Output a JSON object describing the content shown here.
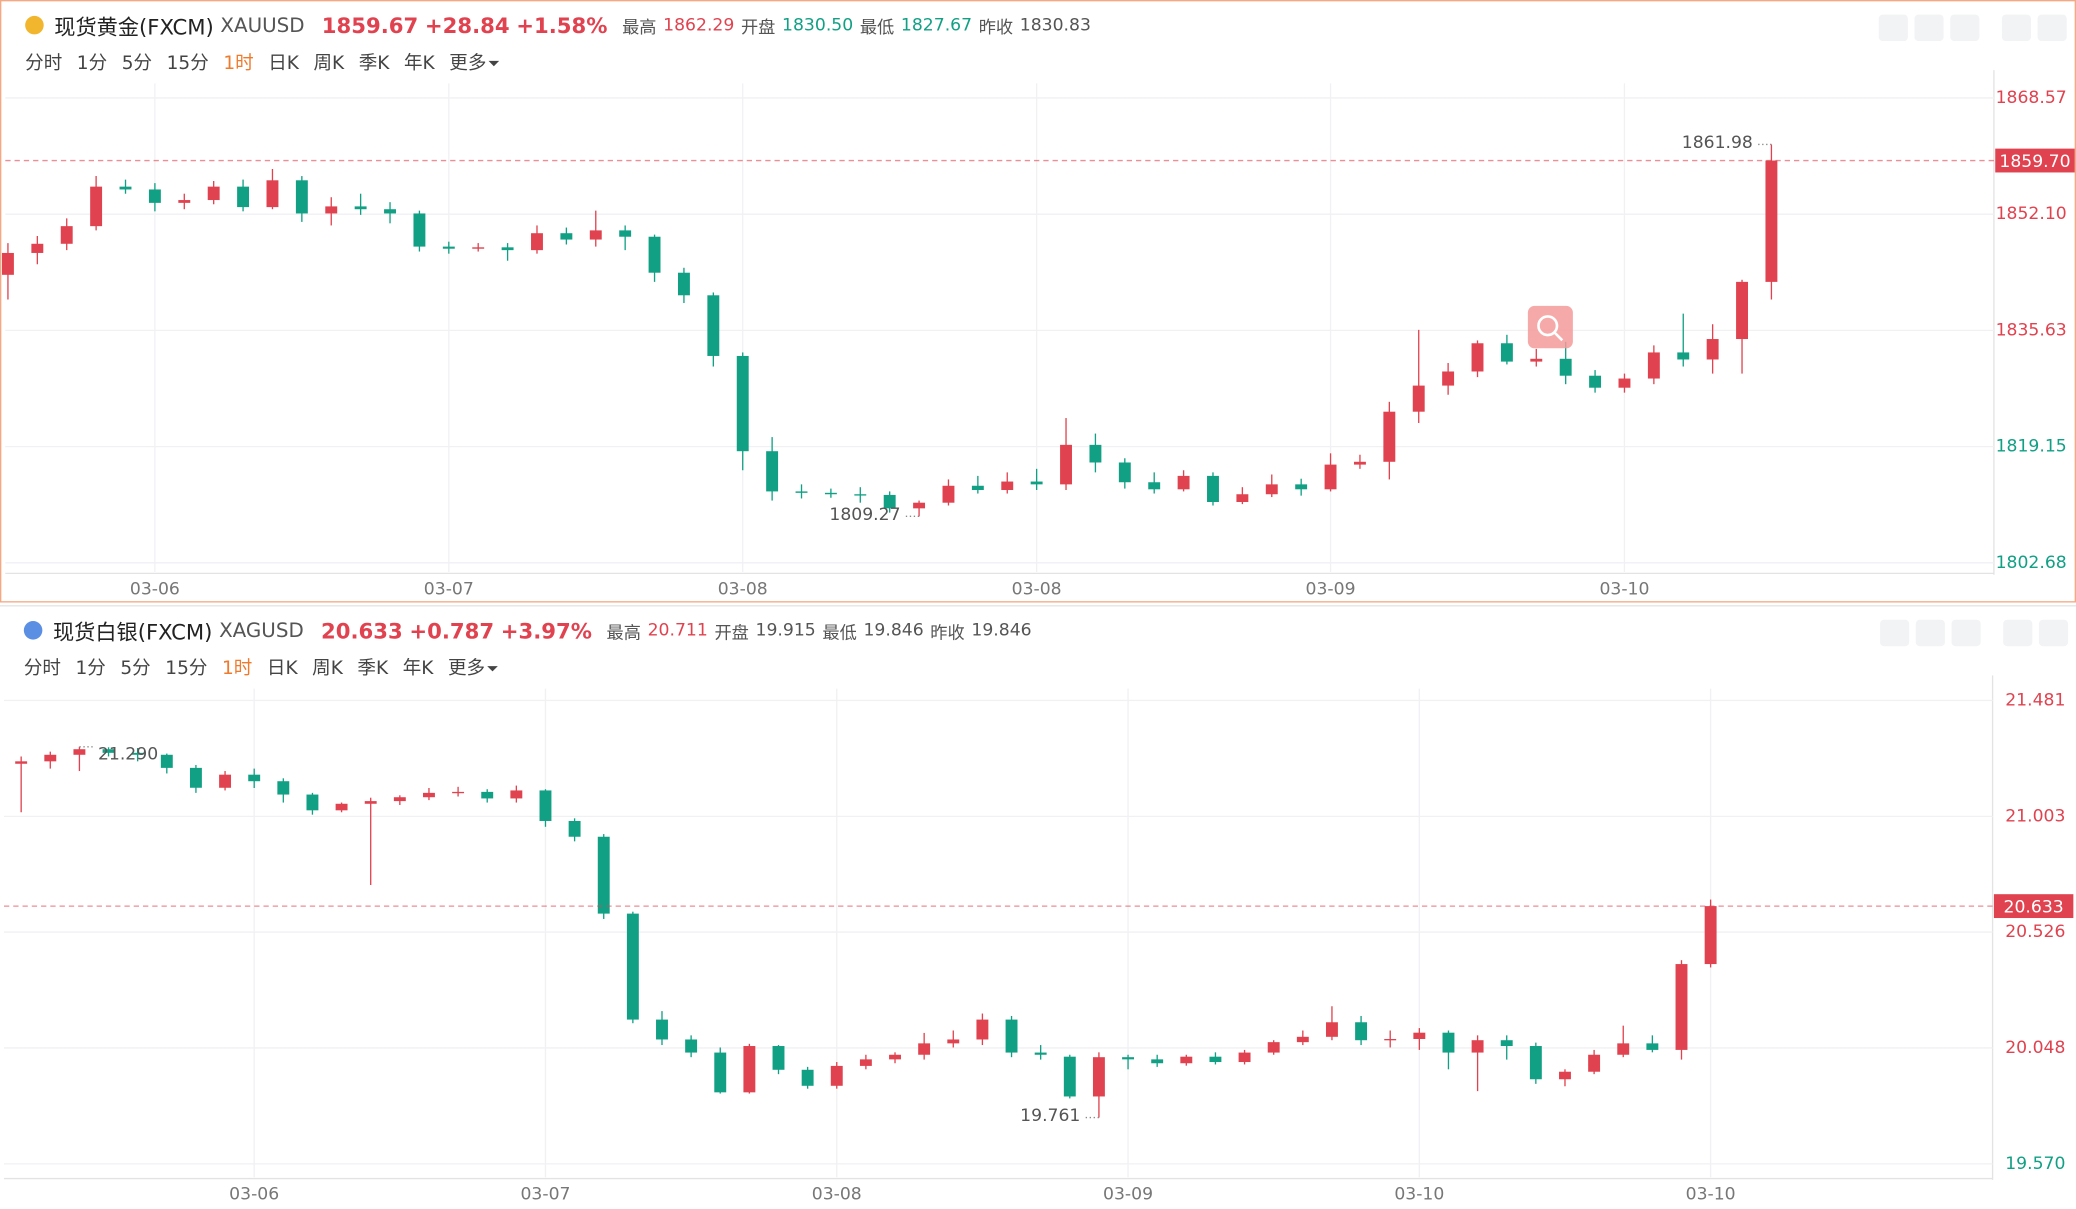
{
  "periods": [
    "分时",
    "1分",
    "5分",
    "15分",
    "1时",
    "日K",
    "周K",
    "季K",
    "年K",
    "更多"
  ],
  "panels": [
    {
      "header": {
        "name": "现货黄金(FXCM)",
        "symbol": "XAUUSD",
        "price": "1859.67",
        "change": "+28.84",
        "change_pct": "+1.58%",
        "stats": [
          {
            "label": "最高",
            "value": "1862.29",
            "color": "#e0434f"
          },
          {
            "label": "开盘",
            "value": "1830.50",
            "color": "#12a085"
          },
          {
            "label": "最低",
            "value": "1827.67",
            "color": "#12a085"
          },
          {
            "label": "昨收",
            "value": "1830.83",
            "color": "#555555"
          }
        ]
      }
    },
    {
      "header": {
        "name": "现货白银(FXCM)",
        "symbol": "XAGUSD",
        "price": "20.633",
        "change": "+0.787",
        "change_pct": "+3.97%",
        "stats": [
          {
            "label": "最高",
            "value": "20.711",
            "color": "#e0434f"
          },
          {
            "label": "开盘",
            "value": "19.915",
            "color": "#555555"
          },
          {
            "label": "最低",
            "value": "19.846",
            "color": "#555555"
          },
          {
            "label": "昨收",
            "value": "19.846",
            "color": "#555555"
          }
        ]
      }
    }
  ],
  "chart_data": [
    {
      "type": "candlestick",
      "up_color": "#e0434f",
      "down_color": "#12a085",
      "xlim": [
        -0.09,
        67.57
      ],
      "ylim": [
        1801.37,
        1870.63
      ],
      "xticks": [
        {
          "value": 5,
          "label": "03-06"
        },
        {
          "value": 15,
          "label": "03-07"
        },
        {
          "value": 25,
          "label": "03-08"
        },
        {
          "value": 35,
          "label": "03-08"
        },
        {
          "value": 45,
          "label": "03-09"
        },
        {
          "value": 55,
          "label": "03-10"
        }
      ],
      "yticks": [
        1868.57,
        {
          "value": 1852.1,
          "label": "1852.10"
        },
        1835.63,
        1819.15,
        1802.68
      ],
      "grid": true,
      "last": {
        "value": 1859.7,
        "label": "1859.70"
      },
      "annotations": [
        {
          "value": 1861.98,
          "label": "1861.98"
        },
        {
          "value": 1809.27,
          "label": "1809.27"
        }
      ],
      "candles": [
        [
          1843.5,
          1848.0,
          1840.0,
          1846.6
        ],
        [
          1846.6,
          1849.0,
          1845.0,
          1847.9
        ],
        [
          1847.9,
          1851.5,
          1847.0,
          1850.4
        ],
        [
          1850.4,
          1857.5,
          1849.8,
          1856.0
        ],
        [
          1856.0,
          1857.0,
          1855.0,
          1855.6
        ],
        [
          1855.6,
          1856.5,
          1852.5,
          1853.7
        ],
        [
          1853.7,
          1855.0,
          1852.8,
          1854.1
        ],
        [
          1854.1,
          1856.8,
          1853.5,
          1856.0
        ],
        [
          1856.0,
          1857.0,
          1852.5,
          1853.1
        ],
        [
          1853.1,
          1858.5,
          1852.8,
          1856.9
        ],
        [
          1856.9,
          1857.5,
          1851.0,
          1852.2
        ],
        [
          1852.2,
          1854.5,
          1850.5,
          1853.2
        ],
        [
          1853.2,
          1855.0,
          1852.0,
          1852.8
        ],
        [
          1852.8,
          1853.8,
          1850.8,
          1852.2
        ],
        [
          1852.2,
          1852.6,
          1846.8,
          1847.5
        ],
        [
          1847.5,
          1848.2,
          1846.5,
          1847.2
        ],
        [
          1847.2,
          1848.0,
          1846.8,
          1847.4
        ],
        [
          1847.4,
          1848.0,
          1845.5,
          1847.0
        ],
        [
          1847.0,
          1850.5,
          1846.5,
          1849.4
        ],
        [
          1849.4,
          1850.2,
          1847.8,
          1848.5
        ],
        [
          1848.5,
          1852.6,
          1847.5,
          1849.8
        ],
        [
          1849.8,
          1850.5,
          1847.0,
          1848.9
        ],
        [
          1848.9,
          1849.2,
          1842.5,
          1843.8
        ],
        [
          1843.8,
          1844.5,
          1839.5,
          1840.6
        ],
        [
          1840.6,
          1841.0,
          1830.5,
          1832.0
        ],
        [
          1832.0,
          1832.5,
          1815.8,
          1818.5
        ],
        [
          1818.5,
          1820.5,
          1811.5,
          1812.8
        ],
        [
          1812.8,
          1813.8,
          1811.8,
          1812.6
        ],
        [
          1812.6,
          1813.2,
          1811.9,
          1812.4
        ],
        [
          1812.4,
          1813.4,
          1811.2,
          1812.3
        ],
        [
          1812.3,
          1812.8,
          1809.8,
          1810.4
        ],
        [
          1810.4,
          1811.5,
          1809.27,
          1811.2
        ],
        [
          1811.2,
          1814.5,
          1810.8,
          1813.6
        ],
        [
          1813.6,
          1815.0,
          1812.5,
          1813.0
        ],
        [
          1813.0,
          1815.5,
          1812.5,
          1814.2
        ],
        [
          1814.2,
          1816.0,
          1813.0,
          1813.8
        ],
        [
          1813.8,
          1823.2,
          1813.0,
          1819.4
        ],
        [
          1819.4,
          1821.0,
          1815.5,
          1816.9
        ],
        [
          1816.9,
          1817.5,
          1813.2,
          1814.1
        ],
        [
          1814.1,
          1815.5,
          1812.5,
          1813.1
        ],
        [
          1813.1,
          1815.8,
          1812.8,
          1815.0
        ],
        [
          1815.0,
          1815.5,
          1810.8,
          1811.3
        ],
        [
          1811.3,
          1813.4,
          1811.0,
          1812.4
        ],
        [
          1812.4,
          1815.2,
          1812.0,
          1813.8
        ],
        [
          1813.8,
          1814.6,
          1812.2,
          1813.1
        ],
        [
          1813.1,
          1818.2,
          1812.8,
          1816.6
        ],
        [
          1816.6,
          1818.0,
          1816.0,
          1817.0
        ],
        [
          1817.0,
          1825.5,
          1814.5,
          1824.1
        ],
        [
          1824.1,
          1835.7,
          1822.5,
          1827.8
        ],
        [
          1827.8,
          1831.0,
          1826.5,
          1829.8
        ],
        [
          1829.8,
          1834.2,
          1829.0,
          1833.8
        ],
        [
          1833.8,
          1835.0,
          1830.8,
          1831.2
        ],
        [
          1831.2,
          1833.0,
          1830.5,
          1831.6
        ],
        [
          1831.6,
          1834.0,
          1828.0,
          1829.2
        ],
        [
          1829.2,
          1830.0,
          1826.8,
          1827.5
        ],
        [
          1827.5,
          1829.5,
          1826.8,
          1828.8
        ],
        [
          1828.8,
          1833.5,
          1828.0,
          1832.5
        ],
        [
          1832.5,
          1838.0,
          1830.5,
          1831.5
        ],
        [
          1831.5,
          1836.5,
          1829.5,
          1834.4
        ],
        [
          1834.4,
          1842.8,
          1829.5,
          1842.5
        ],
        [
          1842.5,
          1861.98,
          1840.0,
          1859.7
        ]
      ]
    },
    {
      "type": "candlestick",
      "up_color": "#e0434f",
      "down_color": "#12a085",
      "xlim": [
        -0.59,
        67.68
      ],
      "ylim": [
        19.515,
        21.53
      ],
      "xticks": [
        {
          "value": 8,
          "label": "03-06"
        },
        {
          "value": 18,
          "label": "03-07"
        },
        {
          "value": 28,
          "label": "03-08"
        },
        {
          "value": 38,
          "label": "03-09"
        },
        {
          "value": 48,
          "label": "03-10"
        },
        {
          "value": 58,
          "label": "03-10"
        }
      ],
      "yticks": [
        21.481,
        21.003,
        20.526,
        20.048,
        {
          "value": 19.57,
          "label": "19.570"
        }
      ],
      "grid": true,
      "last": {
        "value": 20.633,
        "label": "20.633"
      },
      "annotations": [
        {
          "value": 21.29,
          "label": "21.290"
        },
        {
          "value": 19.761,
          "label": "19.761"
        }
      ],
      "candles": [
        [
          21.22,
          21.25,
          21.02,
          21.23
        ],
        [
          21.23,
          21.27,
          21.2,
          21.257
        ],
        [
          21.257,
          21.29,
          21.19,
          21.28
        ],
        [
          21.28,
          21.288,
          21.25,
          21.265
        ],
        [
          21.265,
          21.285,
          21.23,
          21.257
        ],
        [
          21.257,
          21.262,
          21.18,
          21.203
        ],
        [
          21.203,
          21.215,
          21.1,
          21.121
        ],
        [
          21.121,
          21.19,
          21.11,
          21.175
        ],
        [
          21.175,
          21.2,
          21.12,
          21.148
        ],
        [
          21.148,
          21.16,
          21.06,
          21.093
        ],
        [
          21.093,
          21.1,
          21.01,
          21.028
        ],
        [
          21.028,
          21.06,
          21.02,
          21.055
        ],
        [
          21.055,
          21.08,
          20.72,
          21.066
        ],
        [
          21.066,
          21.09,
          21.05,
          21.082
        ],
        [
          21.082,
          21.12,
          21.07,
          21.1
        ],
        [
          21.1,
          21.125,
          21.085,
          21.104
        ],
        [
          21.104,
          21.115,
          21.06,
          21.077
        ],
        [
          21.077,
          21.13,
          21.06,
          21.11
        ],
        [
          21.11,
          21.115,
          20.96,
          20.984
        ],
        [
          20.984,
          20.995,
          20.9,
          20.919
        ],
        [
          20.919,
          20.93,
          20.58,
          20.602
        ],
        [
          20.602,
          20.61,
          20.15,
          20.165
        ],
        [
          20.165,
          20.2,
          20.06,
          20.083
        ],
        [
          20.083,
          20.1,
          20.01,
          20.029
        ],
        [
          20.029,
          20.05,
          19.86,
          19.865
        ],
        [
          19.865,
          20.065,
          19.86,
          20.056
        ],
        [
          20.056,
          20.06,
          19.94,
          19.958
        ],
        [
          19.958,
          19.97,
          19.88,
          19.892
        ],
        [
          19.892,
          19.99,
          19.88,
          19.974
        ],
        [
          19.974,
          20.02,
          19.96,
          20.001
        ],
        [
          20.001,
          20.03,
          19.985,
          20.02
        ],
        [
          20.02,
          20.11,
          20.0,
          20.067
        ],
        [
          20.067,
          20.12,
          20.05,
          20.083
        ],
        [
          20.083,
          20.19,
          20.06,
          20.165
        ],
        [
          20.165,
          20.18,
          20.01,
          20.029
        ],
        [
          20.029,
          20.06,
          20.0,
          20.02
        ],
        [
          20.012,
          20.02,
          19.84,
          19.848
        ],
        [
          19.848,
          20.03,
          19.761,
          20.01
        ],
        [
          20.01,
          20.02,
          19.96,
          20.001
        ],
        [
          20.001,
          20.02,
          19.97,
          19.985
        ],
        [
          19.985,
          20.02,
          19.975,
          20.012
        ],
        [
          20.012,
          20.03,
          19.98,
          19.99
        ],
        [
          19.99,
          20.04,
          19.98,
          20.029
        ],
        [
          20.029,
          20.08,
          20.02,
          20.072
        ],
        [
          20.072,
          20.12,
          20.06,
          20.094
        ],
        [
          20.094,
          20.22,
          20.08,
          20.154
        ],
        [
          20.154,
          20.18,
          20.06,
          20.08
        ],
        [
          20.08,
          20.12,
          20.05,
          20.085
        ],
        [
          20.085,
          20.13,
          20.04,
          20.111
        ],
        [
          20.111,
          20.12,
          19.96,
          20.029
        ],
        [
          20.029,
          20.1,
          19.87,
          20.08
        ],
        [
          20.08,
          20.1,
          20.0,
          20.056
        ],
        [
          20.056,
          20.07,
          19.9,
          19.919
        ],
        [
          19.919,
          19.96,
          19.89,
          19.95
        ],
        [
          19.95,
          20.04,
          19.94,
          20.02
        ],
        [
          20.02,
          20.14,
          20.01,
          20.067
        ],
        [
          20.067,
          20.1,
          20.03,
          20.04
        ],
        [
          20.04,
          20.41,
          20.0,
          20.394
        ],
        [
          20.394,
          20.66,
          20.38,
          20.633
        ]
      ]
    }
  ]
}
